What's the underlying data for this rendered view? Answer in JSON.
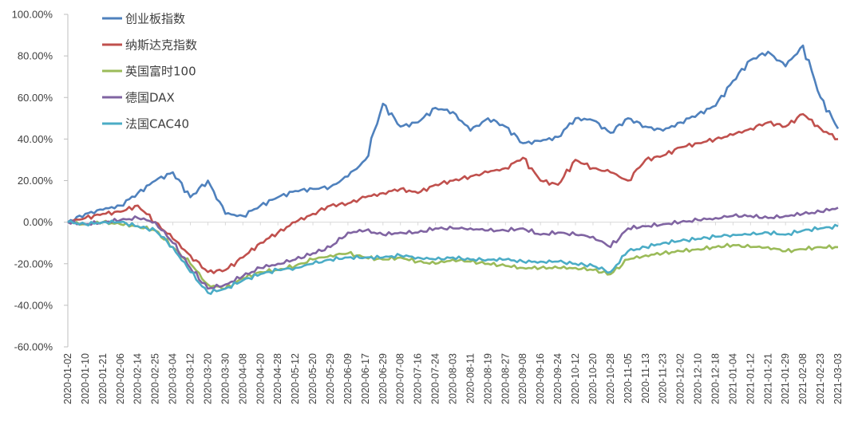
{
  "chart_data": {
    "type": "line",
    "title": "",
    "xlabel": "",
    "ylabel": "",
    "ylim": [
      -60,
      100
    ],
    "y_ticks": [
      "100.00%",
      "80.00%",
      "60.00%",
      "40.00%",
      "20.00%",
      "0.00%",
      "-20.00%",
      "-40.00%",
      "-60.00%"
    ],
    "x_tick_labels": [
      "2020-01-02",
      "2020-01-10",
      "2020-01-21",
      "2020-02-06",
      "2020-02-14",
      "2020-02-25",
      "2020-03-04",
      "2020-03-12",
      "2020-03-20",
      "2020-03-30",
      "2020-04-08",
      "2020-04-20",
      "2020-04-28",
      "2020-05-12",
      "2020-05-20",
      "2020-05-29",
      "2020-06-09",
      "2020-06-17",
      "2020-06-29",
      "2020-07-08",
      "2020-07-16",
      "2020-07-24",
      "2020-08-03",
      "2020-08-11",
      "2020-08-19",
      "2020-08-27",
      "2020-09-08",
      "2020-09-16",
      "2020-09-24",
      "2020-10-12",
      "2020-10-20",
      "2020-10-28",
      "2020-11-05",
      "2020-11-13",
      "2020-11-23",
      "2020-12-02",
      "2020-12-10",
      "2020-12-18",
      "2021-01-04",
      "2021-01-12",
      "2021-01-21",
      "2021-01-29",
      "2021-02-08",
      "2021-02-23",
      "2021-03-03"
    ],
    "legend_position": "top-left",
    "grid": false,
    "series": [
      {
        "name": "创业板指数",
        "color": "#4f81bd",
        "values": [
          0,
          4,
          6,
          8,
          14,
          20,
          24,
          12,
          20,
          4,
          3,
          8,
          12,
          15,
          16,
          17,
          22,
          30,
          57,
          46,
          48,
          55,
          53,
          44,
          50,
          46,
          38,
          39,
          41,
          50,
          49,
          43,
          50,
          46,
          44,
          48,
          52,
          56,
          68,
          78,
          82,
          75,
          85,
          60,
          45
        ]
      },
      {
        "name": "纳斯达克指数",
        "color": "#c0504d",
        "values": [
          0,
          2,
          4,
          5,
          8,
          0,
          -8,
          -16,
          -24,
          -23,
          -17,
          -10,
          -5,
          0,
          4,
          8,
          9,
          12,
          14,
          16,
          14,
          18,
          20,
          22,
          24,
          26,
          31,
          20,
          18,
          30,
          26,
          24,
          20,
          30,
          32,
          36,
          38,
          40,
          42,
          45,
          48,
          46,
          52,
          45,
          40
        ]
      },
      {
        "name": "英国富时100",
        "color": "#9bbb59",
        "values": [
          0,
          -1,
          0,
          -1,
          -2,
          -4,
          -12,
          -20,
          -30,
          -32,
          -27,
          -24,
          -23,
          -21,
          -18,
          -16,
          -15,
          -17,
          -18,
          -17,
          -19,
          -20,
          -18,
          -19,
          -20,
          -21,
          -22,
          -22,
          -22,
          -22,
          -23,
          -25,
          -18,
          -16,
          -15,
          -14,
          -13,
          -12,
          -11,
          -12,
          -12,
          -14,
          -13,
          -12,
          -12
        ]
      },
      {
        "name": "德国DAX",
        "color": "#8064a2",
        "values": [
          0,
          -1,
          0,
          1,
          2,
          0,
          -10,
          -22,
          -32,
          -30,
          -26,
          -22,
          -20,
          -18,
          -15,
          -12,
          -5,
          -4,
          -6,
          -5,
          -5,
          -3,
          -3,
          -3,
          -4,
          -4,
          -3,
          -6,
          -5,
          -6,
          -7,
          -12,
          -3,
          -2,
          -1,
          0,
          1,
          2,
          3,
          3,
          2,
          3,
          4,
          5,
          7
        ]
      },
      {
        "name": "法国CAC40",
        "color": "#4bacc6",
        "values": [
          0,
          -1,
          0,
          0,
          -2,
          -4,
          -12,
          -24,
          -34,
          -32,
          -28,
          -25,
          -23,
          -22,
          -20,
          -18,
          -17,
          -17,
          -17,
          -16,
          -17,
          -18,
          -17,
          -18,
          -18,
          -18,
          -19,
          -19,
          -19,
          -20,
          -21,
          -24,
          -14,
          -12,
          -10,
          -9,
          -8,
          -7,
          -6,
          -6,
          -5,
          -6,
          -4,
          -3,
          -2
        ]
      }
    ]
  }
}
